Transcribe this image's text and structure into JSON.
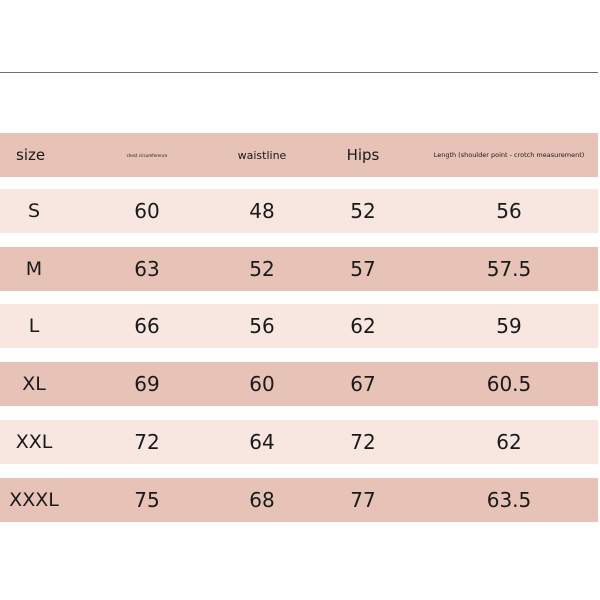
{
  "table": {
    "headers": [
      "size",
      "chest circumference",
      "waistline",
      "Hips",
      "Length (shoulder point - crotch measurement)"
    ],
    "rows": [
      [
        "S",
        "60",
        "48",
        "52",
        "56"
      ],
      [
        "M",
        "63",
        "52",
        "57",
        "57.5"
      ],
      [
        "L",
        "66",
        "56",
        "62",
        "59"
      ],
      [
        "XL",
        "69",
        "60",
        "67",
        "60.5"
      ],
      [
        "XXL",
        "72",
        "64",
        "72",
        "62"
      ],
      [
        "XXXL",
        "75",
        "68",
        "77",
        "63.5"
      ]
    ]
  },
  "colors": {
    "dark_row": "#e6c3b6",
    "light_row": "#f8e6e0",
    "rule": "#6e6e6e"
  }
}
